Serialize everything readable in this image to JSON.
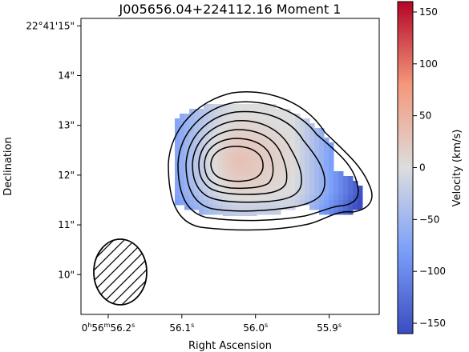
{
  "chart_data": {
    "type": "heatmap",
    "title": "J005656.04+224112.16 Moment 1",
    "xlabel": "Right Ascension",
    "ylabel": "Declination",
    "colorbar_label": "Velocity (km/s)",
    "colormap": "coolwarm",
    "x_ticks": [
      {
        "value": 56.2,
        "label": "0h56m56.2s",
        "parts": [
          "0",
          "h",
          "56",
          "m",
          "56.2",
          "s"
        ]
      },
      {
        "value": 56.1,
        "label": "56.1s",
        "parts": [
          "56.1",
          "s"
        ]
      },
      {
        "value": 56.0,
        "label": "56.0s",
        "parts": [
          "56.0",
          "s"
        ]
      },
      {
        "value": 55.9,
        "label": "55.9s",
        "parts": [
          "55.9",
          "s"
        ]
      }
    ],
    "y_ticks": [
      {
        "value": 15,
        "label": "22°41'15\""
      },
      {
        "value": 14,
        "label": "14\""
      },
      {
        "value": 13,
        "label": "13\""
      },
      {
        "value": 12,
        "label": "12\""
      },
      {
        "value": 11,
        "label": "11\""
      },
      {
        "value": 10,
        "label": "10\""
      }
    ],
    "xlim_ra_seconds": [
      56.237,
      55.832
    ],
    "ylim_dec_arcsec": [
      9.2,
      15.15
    ],
    "colorbar": {
      "vmin": -160,
      "vmax": 160,
      "ticks": [
        -150,
        -100,
        -50,
        0,
        50,
        100,
        150
      ],
      "tick_labels": [
        "−150",
        "−100",
        "−50",
        "0",
        "50",
        "100",
        "150"
      ]
    },
    "velocity_field": {
      "center_ra_s": 56.025,
      "center_dec_arcsec": 12.35,
      "velocity_at_center_km_s": 35,
      "velocity_west_edge_km_s": -150,
      "velocity_east_edge_km_s": -30
    },
    "contour_levels": 7,
    "beam": {
      "center_ra_s": 56.195,
      "center_dec_arcsec": 10.1,
      "hatched": true
    },
    "grid": false
  },
  "colors": {
    "cmap_low": "#3b4cc0",
    "cmap_mid": "#dddddd",
    "cmap_high": "#b40426",
    "contour": "#000000"
  }
}
